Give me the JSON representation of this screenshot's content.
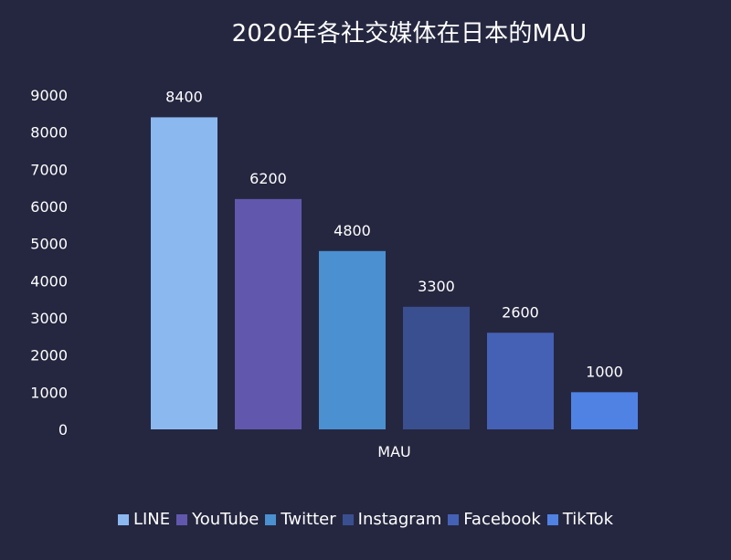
{
  "chart_data": {
    "type": "bar",
    "title": "2020年各社交媒体在日本的MAU",
    "categories": [
      "MAU"
    ],
    "series": [
      {
        "name": "LINE",
        "values": [
          8400
        ],
        "color": "#8cb8f0"
      },
      {
        "name": "YouTube",
        "values": [
          6200
        ],
        "color": "#6158ad"
      },
      {
        "name": "Twitter",
        "values": [
          4800
        ],
        "color": "#4b90d0"
      },
      {
        "name": "Instagram",
        "values": [
          3300
        ],
        "color": "#3a4f8f"
      },
      {
        "name": "Facebook",
        "values": [
          2600
        ],
        "color": "#4561b6"
      },
      {
        "name": "TikTok",
        "values": [
          1000
        ],
        "color": "#4f82e3"
      }
    ],
    "y_ticks": [
      "0",
      "1000",
      "2000",
      "3000",
      "4000",
      "5000",
      "6000",
      "7000",
      "8000",
      "9000"
    ],
    "ylim": [
      0,
      9000
    ],
    "xlabel": "",
    "ylabel": "",
    "grid": false,
    "legend_position": "bottom-center"
  },
  "colors": {
    "background": "#252740",
    "text": "#ffffff"
  }
}
